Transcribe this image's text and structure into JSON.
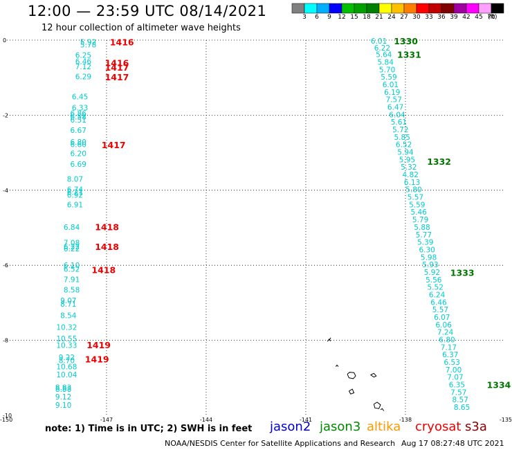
{
  "header": {
    "title": "12:00 — 23:59 UTC 08/14/2021",
    "subtitle": "12 hour collection of altimeter wave heights"
  },
  "colorscale": {
    "colors": [
      "#808080",
      "#00ffff",
      "#00b0ff",
      "#0000ff",
      "#00c000",
      "#00a000",
      "#008000",
      "#ffff00",
      "#ffc000",
      "#ff8000",
      "#ff0000",
      "#c00000",
      "#800000",
      "#a000a0",
      "#ff00ff",
      "#ffa0ff",
      "#000000"
    ],
    "ticks": [
      "3",
      "6",
      "9",
      "12",
      "15",
      "18",
      "21",
      "24",
      "27",
      "30",
      "33",
      "36",
      "39",
      "42",
      "45",
      "70"
    ],
    "unit": "(ft)"
  },
  "legend": [
    {
      "name": "jason2",
      "color": "#0000cc"
    },
    {
      "name": "jason3",
      "color": "#008800"
    },
    {
      "name": "altika",
      "color": "#ff9900"
    },
    {
      "name": "cryosat",
      "color": "#ee0000"
    },
    {
      "name": "s3a",
      "color": "#880000"
    }
  ],
  "footer": {
    "note": "note:  1) Time is in UTC; 2) SWH is in feet",
    "credits": "NOAA/NESDIS Center for Satellite Applications and Research",
    "timestamp": "Aug 17 08:27:48 UTC 2021"
  },
  "chart_data": {
    "type": "scatter",
    "xlim": [
      -150,
      -135
    ],
    "ylim": [
      -10,
      0
    ],
    "x_ticks": [
      "-150",
      "-147",
      "-144",
      "-141",
      "-138",
      "-135"
    ],
    "y_ticks": [
      "0",
      "-2",
      "-4",
      "-6",
      "-8",
      "-10"
    ],
    "grid": true,
    "series": [
      {
        "satellite": "cryosat",
        "color": "#00cccc",
        "points": [
          {
            "x": -147.55,
            "y": -0.05,
            "label": "5.92"
          },
          {
            "x": -147.55,
            "y": -0.12,
            "label": "5.78"
          },
          {
            "x": -147.7,
            "y": -0.4,
            "label": "6.25"
          },
          {
            "x": -147.7,
            "y": -0.56,
            "label": "6.46"
          },
          {
            "x": -147.7,
            "y": -0.7,
            "label": "7.12"
          },
          {
            "x": -147.7,
            "y": -0.97,
            "label": "6.29"
          },
          {
            "x": -147.8,
            "y": -1.5,
            "label": "6.45"
          },
          {
            "x": -147.8,
            "y": -1.8,
            "label": "6.33"
          },
          {
            "x": -147.85,
            "y": -1.95,
            "label": "6.86"
          },
          {
            "x": -147.85,
            "y": -2.04,
            "label": "6.58"
          },
          {
            "x": -147.85,
            "y": -2.12,
            "label": "6.51"
          },
          {
            "x": -147.85,
            "y": -2.4,
            "label": "6.67"
          },
          {
            "x": -147.85,
            "y": -2.71,
            "label": "6.80"
          },
          {
            "x": -147.85,
            "y": -2.78,
            "label": "6.60"
          },
          {
            "x": -147.85,
            "y": -3.02,
            "label": "6.20"
          },
          {
            "x": -147.85,
            "y": -3.3,
            "label": "6.69"
          },
          {
            "x": -147.95,
            "y": -3.7,
            "label": "8.07"
          },
          {
            "x": -147.95,
            "y": -3.98,
            "label": "6.74"
          },
          {
            "x": -147.95,
            "y": -4.05,
            "label": "6.21"
          },
          {
            "x": -147.95,
            "y": -4.12,
            "label": "6.92"
          },
          {
            "x": -147.95,
            "y": -4.38,
            "label": "6.91"
          },
          {
            "x": -148.05,
            "y": -4.98,
            "label": "6.84"
          },
          {
            "x": -148.05,
            "y": -5.4,
            "label": "7.08"
          },
          {
            "x": -148.05,
            "y": -5.5,
            "label": "6.22"
          },
          {
            "x": -148.05,
            "y": -5.55,
            "label": "6.22"
          },
          {
            "x": -148.05,
            "y": -6.0,
            "label": "6.10"
          },
          {
            "x": -148.05,
            "y": -6.1,
            "label": "6.52"
          },
          {
            "x": -148.05,
            "y": -6.37,
            "label": "7.91"
          },
          {
            "x": -148.05,
            "y": -6.65,
            "label": "8.58"
          },
          {
            "x": -148.15,
            "y": -6.94,
            "label": "9.07"
          },
          {
            "x": -148.15,
            "y": -7.03,
            "label": "8.71"
          },
          {
            "x": -148.15,
            "y": -7.33,
            "label": "8.54"
          },
          {
            "x": -148.2,
            "y": -7.65,
            "label": "10.32"
          },
          {
            "x": -148.2,
            "y": -7.95,
            "label": "10.55"
          },
          {
            "x": -148.2,
            "y": -8.13,
            "label": "10.33"
          },
          {
            "x": -148.2,
            "y": -8.45,
            "label": "9.22"
          },
          {
            "x": -148.2,
            "y": -8.53,
            "label": "8.70"
          },
          {
            "x": -148.2,
            "y": -8.7,
            "label": "10.68"
          },
          {
            "x": -148.2,
            "y": -8.91,
            "label": "10.04"
          },
          {
            "x": -148.3,
            "y": -9.25,
            "label": "8.83"
          },
          {
            "x": -148.3,
            "y": -9.3,
            "label": "8.88"
          },
          {
            "x": -148.3,
            "y": -9.5,
            "label": "9.12"
          },
          {
            "x": -148.3,
            "y": -9.72,
            "label": "9.10"
          }
        ]
      },
      {
        "satellite": "jason3",
        "color": "#00cccc",
        "points": [
          {
            "x": -138.8,
            "y": -0.02,
            "label": "6.01"
          },
          {
            "x": -138.7,
            "y": -0.2,
            "label": "6.22"
          },
          {
            "x": -138.65,
            "y": -0.38,
            "label": "5.64"
          },
          {
            "x": -138.6,
            "y": -0.58,
            "label": "5.84"
          },
          {
            "x": -138.55,
            "y": -0.78,
            "label": "5.70"
          },
          {
            "x": -138.5,
            "y": -0.98,
            "label": "5.59"
          },
          {
            "x": -138.45,
            "y": -1.18,
            "label": "6.01"
          },
          {
            "x": -138.4,
            "y": -1.38,
            "label": "6.19"
          },
          {
            "x": -138.35,
            "y": -1.58,
            "label": "7.57"
          },
          {
            "x": -138.3,
            "y": -1.78,
            "label": "6.47"
          },
          {
            "x": -138.25,
            "y": -1.98,
            "label": "6.04"
          },
          {
            "x": -138.2,
            "y": -2.18,
            "label": "5.61"
          },
          {
            "x": -138.15,
            "y": -2.38,
            "label": "5.72"
          },
          {
            "x": -138.1,
            "y": -2.58,
            "label": "5.85"
          },
          {
            "x": -138.05,
            "y": -2.78,
            "label": "6.52"
          },
          {
            "x": -138.0,
            "y": -2.98,
            "label": "5.94"
          },
          {
            "x": -137.95,
            "y": -3.18,
            "label": "5.95"
          },
          {
            "x": -137.9,
            "y": -3.38,
            "label": "5.32"
          },
          {
            "x": -137.85,
            "y": -3.58,
            "label": "4.82"
          },
          {
            "x": -137.8,
            "y": -3.78,
            "label": "6.13"
          },
          {
            "x": -137.75,
            "y": -3.98,
            "label": "5.80"
          },
          {
            "x": -137.7,
            "y": -4.18,
            "label": "5.57"
          },
          {
            "x": -137.65,
            "y": -4.38,
            "label": "5.59"
          },
          {
            "x": -137.6,
            "y": -4.58,
            "label": "5.46"
          },
          {
            "x": -137.55,
            "y": -4.78,
            "label": "5.79"
          },
          {
            "x": -137.5,
            "y": -4.98,
            "label": "5.88"
          },
          {
            "x": -137.45,
            "y": -5.18,
            "label": "5.77"
          },
          {
            "x": -137.4,
            "y": -5.38,
            "label": "5.39"
          },
          {
            "x": -137.35,
            "y": -5.58,
            "label": "6.30"
          },
          {
            "x": -137.3,
            "y": -5.78,
            "label": "5.98"
          },
          {
            "x": -137.25,
            "y": -5.98,
            "label": "5.93"
          },
          {
            "x": -137.2,
            "y": -6.18,
            "label": "5.92"
          },
          {
            "x": -137.15,
            "y": -6.38,
            "label": "5.56"
          },
          {
            "x": -137.1,
            "y": -6.58,
            "label": "5.52"
          },
          {
            "x": -137.05,
            "y": -6.78,
            "label": "6.24"
          },
          {
            "x": -137.0,
            "y": -6.98,
            "label": "6.46"
          },
          {
            "x": -136.95,
            "y": -7.18,
            "label": "5.57"
          },
          {
            "x": -136.9,
            "y": -7.38,
            "label": "6.07"
          },
          {
            "x": -136.85,
            "y": -7.58,
            "label": "6.06"
          },
          {
            "x": -136.8,
            "y": -7.78,
            "label": "7.24"
          },
          {
            "x": -136.75,
            "y": -7.98,
            "label": "6.80"
          },
          {
            "x": -136.7,
            "y": -8.18,
            "label": "7.17"
          },
          {
            "x": -136.65,
            "y": -8.38,
            "label": "6.37"
          },
          {
            "x": -136.6,
            "y": -8.58,
            "label": "6.53"
          },
          {
            "x": -136.55,
            "y": -8.78,
            "label": "7.00"
          },
          {
            "x": -136.5,
            "y": -8.98,
            "label": "7.07"
          },
          {
            "x": -136.45,
            "y": -9.18,
            "label": "6.35"
          },
          {
            "x": -136.4,
            "y": -9.38,
            "label": "7.57"
          },
          {
            "x": -136.35,
            "y": -9.58,
            "label": "8.57"
          },
          {
            "x": -136.3,
            "y": -9.78,
            "label": "8.65"
          }
        ]
      }
    ],
    "time_labels": [
      {
        "x": -146.9,
        "y": -0.05,
        "text": "1416",
        "color": "#ee0000"
      },
      {
        "x": -147.05,
        "y": -0.6,
        "text": "1416",
        "color": "#ee0000"
      },
      {
        "x": -147.05,
        "y": -0.72,
        "text": "1417",
        "color": "#ee0000"
      },
      {
        "x": -147.05,
        "y": -0.98,
        "text": "1417",
        "color": "#ee0000"
      },
      {
        "x": -147.15,
        "y": -2.79,
        "text": "1417",
        "color": "#ee0000"
      },
      {
        "x": -147.35,
        "y": -4.97,
        "text": "1418",
        "color": "#ee0000"
      },
      {
        "x": -147.35,
        "y": -5.5,
        "text": "1418",
        "color": "#ee0000"
      },
      {
        "x": -147.45,
        "y": -6.12,
        "text": "1418",
        "color": "#ee0000"
      },
      {
        "x": -147.6,
        "y": -8.12,
        "text": "1419",
        "color": "#ee0000"
      },
      {
        "x": -147.65,
        "y": -8.5,
        "text": "1419",
        "color": "#ee0000"
      },
      {
        "x": -138.35,
        "y": -0.02,
        "text": "1330",
        "color": "#007700"
      },
      {
        "x": -138.25,
        "y": -0.38,
        "text": "1331",
        "color": "#007700"
      },
      {
        "x": -137.35,
        "y": -3.23,
        "text": "1332",
        "color": "#007700"
      },
      {
        "x": -136.65,
        "y": -6.19,
        "text": "1333",
        "color": "#007700"
      },
      {
        "x": -135.55,
        "y": -9.18,
        "text": "1334",
        "color": "#007700"
      }
    ],
    "land": [
      [
        [
          -140.35,
          -8.03
        ],
        [
          -140.3,
          -7.97
        ],
        [
          -140.25,
          -8.02
        ]
      ],
      [
        [
          -140.3,
          -8.0
        ],
        [
          -140.25,
          -7.93
        ]
      ],
      [
        [
          -139.75,
          -8.9
        ],
        [
          -139.68,
          -8.85
        ],
        [
          -139.55,
          -8.86
        ],
        [
          -139.5,
          -8.95
        ],
        [
          -139.57,
          -9.02
        ],
        [
          -139.7,
          -9.0
        ],
        [
          -139.75,
          -8.9
        ]
      ],
      [
        [
          -139.05,
          -8.92
        ],
        [
          -138.95,
          -8.88
        ],
        [
          -138.88,
          -8.95
        ],
        [
          -138.95,
          -8.98
        ],
        [
          -139.05,
          -8.92
        ]
      ],
      [
        [
          -140.1,
          -8.7
        ],
        [
          -140.06,
          -8.66
        ],
        [
          -140.02,
          -8.7
        ]
      ],
      [
        [
          -139.7,
          -9.35
        ],
        [
          -139.6,
          -9.3
        ],
        [
          -139.55,
          -9.4
        ],
        [
          -139.65,
          -9.43
        ],
        [
          -139.7,
          -9.35
        ]
      ],
      [
        [
          -138.95,
          -9.7
        ],
        [
          -138.85,
          -9.65
        ],
        [
          -138.75,
          -9.72
        ],
        [
          -138.8,
          -9.82
        ],
        [
          -138.92,
          -9.8
        ],
        [
          -138.95,
          -9.7
        ]
      ],
      [
        [
          -138.75,
          -9.85
        ],
        [
          -138.7,
          -9.82
        ],
        [
          -138.65,
          -9.88
        ]
      ]
    ]
  }
}
